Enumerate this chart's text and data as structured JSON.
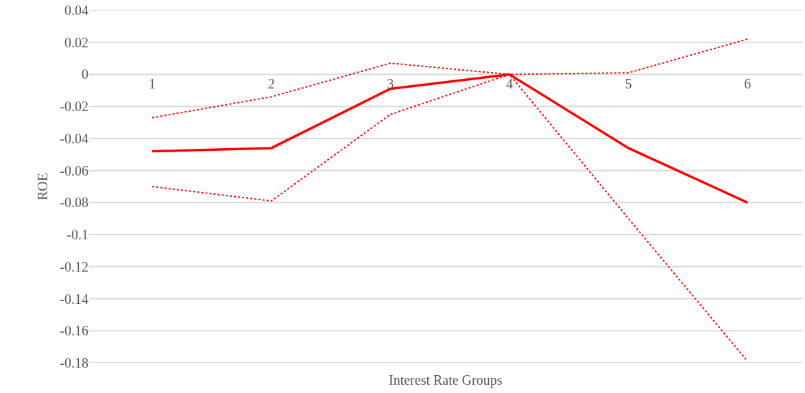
{
  "chart_data": {
    "type": "line",
    "xlabel": "Interest Rate Groups",
    "ylabel": "ROE",
    "categories": [
      "1",
      "2",
      "3",
      "4",
      "5",
      "6"
    ],
    "series": [
      {
        "color": "#ff0000",
        "line_style": "solid",
        "values": [
          -0.048,
          -0.046,
          -0.009,
          0,
          -0.046,
          -0.08
        ]
      },
      {
        "color": "#ff0000",
        "line_style": "dotted",
        "values": [
          -0.027,
          -0.014,
          0.007,
          0,
          0.001,
          0.022
        ]
      },
      {
        "color": "#ff0000",
        "line_style": "dotted",
        "values": [
          -0.07,
          -0.079,
          -0.025,
          0,
          -0.09,
          -0.179
        ]
      }
    ],
    "ylim": [
      -0.18,
      0.04
    ],
    "yticks": [
      0.04,
      0.02,
      0,
      -0.02,
      -0.04,
      -0.06,
      -0.08,
      -0.1,
      -0.12,
      -0.14,
      -0.16,
      -0.18
    ],
    "grid": "y",
    "marker": "none"
  }
}
